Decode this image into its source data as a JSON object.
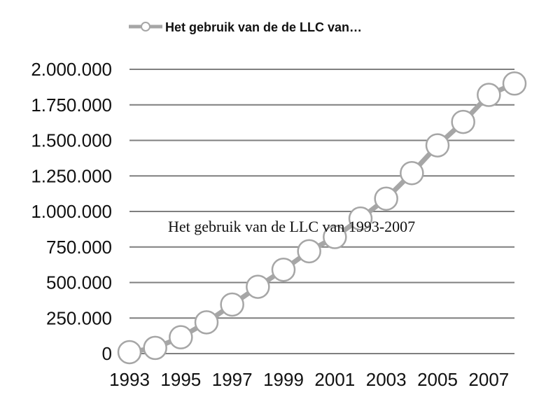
{
  "chart_data": {
    "type": "line",
    "title": "",
    "annotation": "Het gebruik van de LLC van 1993-2007",
    "xlabel": "",
    "ylabel": "",
    "ylim": [
      0,
      2000000
    ],
    "yticks": [
      0,
      250000,
      500000,
      750000,
      1000000,
      1250000,
      1500000,
      1750000,
      2000000
    ],
    "ytick_labels": [
      "0",
      "250.000",
      "500.000",
      "750.000",
      "1.000.000",
      "1.250.000",
      "1.500.000",
      "1.750.000",
      "2.000.000"
    ],
    "x": [
      1993,
      1994,
      1995,
      1996,
      1997,
      1998,
      1999,
      2000,
      2001,
      2002,
      2003,
      2004,
      2005,
      2006,
      2007,
      2008
    ],
    "xtick_labels": [
      "1993",
      "1995",
      "1997",
      "1999",
      "2001",
      "2003",
      "2005",
      "2007"
    ],
    "grid": true,
    "legend": "top",
    "series": [
      {
        "name": "Het gebruik van de de LLC van…",
        "color": "#a6a6a6",
        "marker": "circle",
        "values": [
          10000,
          40000,
          115000,
          220000,
          345000,
          470000,
          590000,
          720000,
          820000,
          950000,
          1090000,
          1270000,
          1465000,
          1630000,
          1820000,
          1900000
        ]
      }
    ]
  }
}
